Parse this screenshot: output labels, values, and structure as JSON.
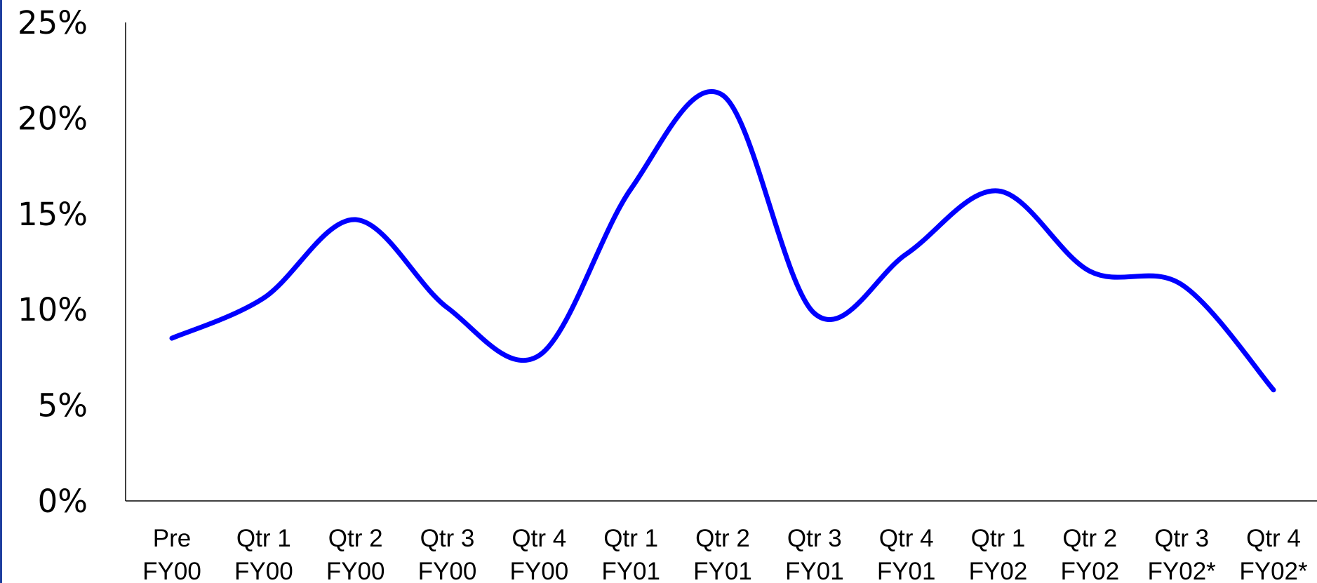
{
  "chart_data": {
    "type": "line",
    "title": "",
    "xlabel": "",
    "ylabel": "",
    "ylim": [
      0,
      25
    ],
    "grid": false,
    "legend": "none",
    "colors": {
      "line": "#0000ff",
      "axis": "#000000",
      "frame": "#1f3f9f"
    },
    "y_ticks": [
      "0%",
      "5%",
      "10%",
      "15%",
      "20%",
      "25%"
    ],
    "x_ticks": [
      {
        "line1": "Pre",
        "line2": "FY00"
      },
      {
        "line1": "Qtr 1",
        "line2": "FY00"
      },
      {
        "line1": "Qtr 2",
        "line2": "FY00"
      },
      {
        "line1": "Qtr 3",
        "line2": "FY00"
      },
      {
        "line1": "Qtr 4",
        "line2": "FY00"
      },
      {
        "line1": "Qtr 1",
        "line2": "FY01"
      },
      {
        "line1": "Qtr 2",
        "line2": "FY01"
      },
      {
        "line1": "Qtr 3",
        "line2": "FY01"
      },
      {
        "line1": "Qtr 4",
        "line2": "FY01"
      },
      {
        "line1": "Qtr 1",
        "line2": "FY02"
      },
      {
        "line1": "Qtr 2",
        "line2": "FY02"
      },
      {
        "line1": "Qtr 3",
        "line2": "FY02*"
      },
      {
        "line1": "Qtr 4",
        "line2": "FY02*"
      }
    ],
    "categories": [
      "Pre FY00",
      "Qtr 1 FY00",
      "Qtr 2 FY00",
      "Qtr 3 FY00",
      "Qtr 4 FY00",
      "Qtr 1 FY01",
      "Qtr 2 FY01",
      "Qtr 3 FY01",
      "Qtr 4 FY01",
      "Qtr 1 FY02",
      "Qtr 2 FY02",
      "Qtr 3 FY02*",
      "Qtr 4 FY02*"
    ],
    "series": [
      {
        "values": [
          8.5,
          10.6,
          14.7,
          10.1,
          7.6,
          16.3,
          21.2,
          9.8,
          12.9,
          16.2,
          12.0,
          11.3,
          5.8
        ]
      }
    ]
  }
}
